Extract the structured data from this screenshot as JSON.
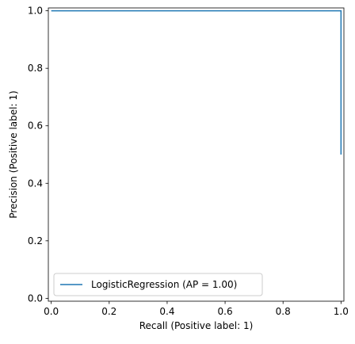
{
  "chart_data": {
    "type": "line",
    "title": "",
    "xlabel": "Recall (Positive label: 1)",
    "ylabel": "Precision (Positive label: 1)",
    "xlim": [
      -0.01,
      1.01
    ],
    "ylim": [
      -0.01,
      1.01
    ],
    "xticks": [
      "0.0",
      "0.2",
      "0.4",
      "0.6",
      "0.8",
      "1.0"
    ],
    "yticks": [
      "0.0",
      "0.2",
      "0.4",
      "0.6",
      "0.8",
      "1.0"
    ],
    "xtick_values": [
      0.0,
      0.2,
      0.4,
      0.6,
      0.8,
      1.0
    ],
    "ytick_values": [
      0.0,
      0.2,
      0.4,
      0.6,
      0.8,
      1.0
    ],
    "grid": false,
    "legend_position": "lower-left",
    "series": [
      {
        "name": "LogisticRegression (AP = 1.00)",
        "color": "#1f77b4",
        "drawstyle": "steps-post",
        "x": [
          0.0,
          0.0,
          1.0,
          1.0
        ],
        "y": [
          1.0,
          1.0,
          1.0,
          0.5
        ]
      }
    ]
  }
}
